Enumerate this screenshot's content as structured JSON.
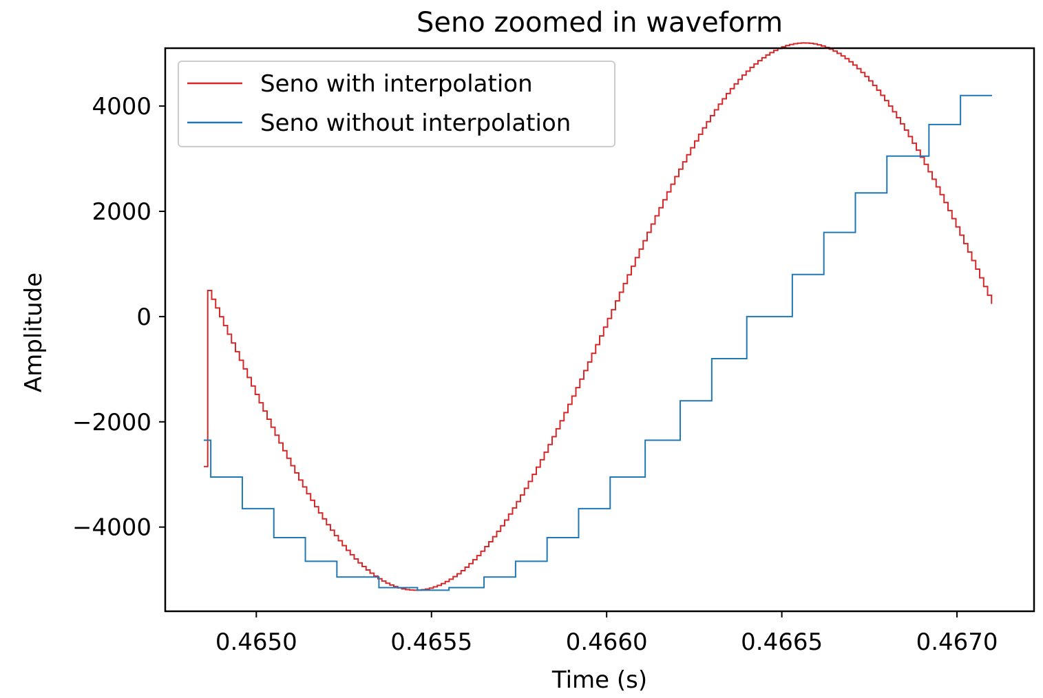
{
  "chart_data": {
    "type": "line",
    "title": "Seno zoomed in waveform",
    "xlabel": "Time (s)",
    "ylabel": "Amplitude",
    "xlim": [
      0.46474,
      0.46722
    ],
    "ylim": [
      -5600,
      5100
    ],
    "x_ticks": [
      0.465,
      0.4655,
      0.466,
      0.4665,
      0.467
    ],
    "x_tick_labels": [
      "0.4650",
      "0.4655",
      "0.4660",
      "0.4665",
      "0.4670"
    ],
    "y_ticks": [
      4000,
      2000,
      0,
      -2000,
      -4000
    ],
    "y_tick_labels": [
      "4000",
      "2000",
      "0",
      "−2000",
      "−4000"
    ],
    "grid": false,
    "legend_position": "top-left",
    "step": true,
    "series": [
      {
        "name": "Seno with interpolation",
        "color": "#d62728",
        "x_start": 0.46485,
        "x_end": 0.4671,
        "x_step": 1.13e-05,
        "amplitude": 5200,
        "center_time": 0.46545,
        "period": 0.00222,
        "initial_value": -2850
      },
      {
        "name": "Seno without interpolation",
        "color": "#1f77b4",
        "x": [
          0.46485,
          0.46487,
          0.46496,
          0.46505,
          0.46514,
          0.46523,
          0.46535,
          0.46546,
          0.46555,
          0.46565,
          0.46574,
          0.46583,
          0.46592,
          0.46601,
          0.46611,
          0.46621,
          0.4663,
          0.4664,
          0.46653,
          0.46662,
          0.46671,
          0.4668,
          0.46692,
          0.46701,
          0.4671
        ],
        "values": [
          -2350,
          -3050,
          -3650,
          -4200,
          -4650,
          -4950,
          -5150,
          -5200,
          -5150,
          -4950,
          -4650,
          -4200,
          -3650,
          -3050,
          -2350,
          -1600,
          -800,
          0,
          800,
          1600,
          2350,
          3050,
          3650,
          4200,
          4200
        ]
      }
    ]
  }
}
